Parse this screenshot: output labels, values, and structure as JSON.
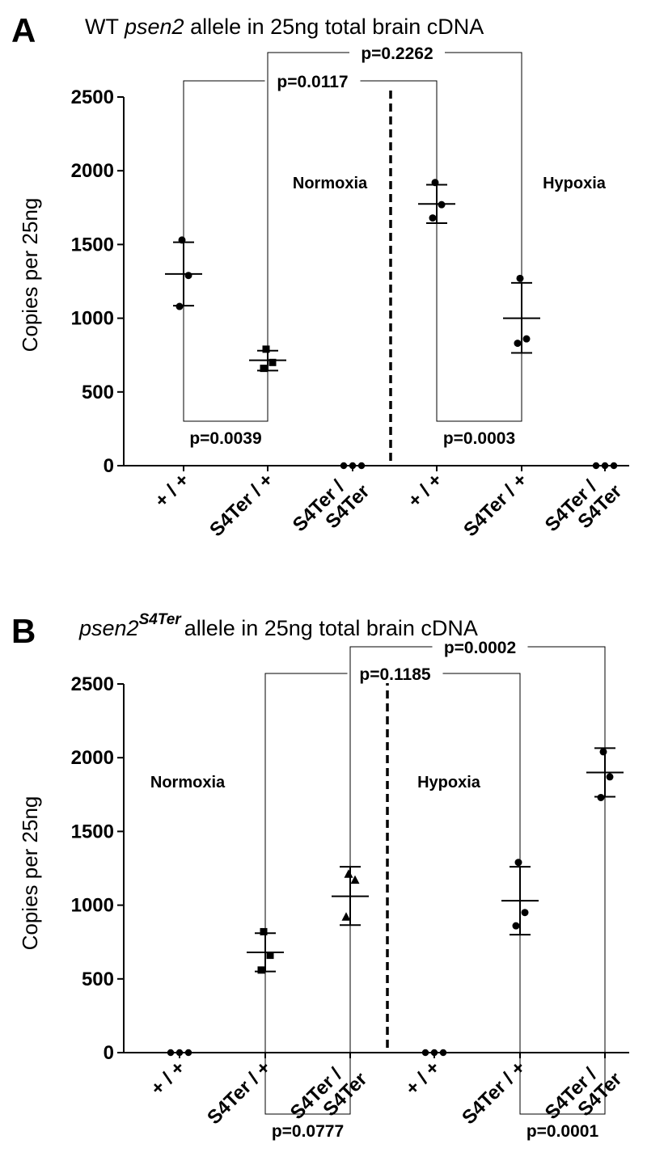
{
  "chart_data": [
    {
      "panel": "A",
      "type": "scatter",
      "title_parts": [
        "WT ",
        "psen2",
        " allele in 25ng total brain cDNA"
      ],
      "ylabel": "Copies per 25ng",
      "ylim": [
        0,
        2500
      ],
      "yticks": [
        0,
        500,
        1000,
        1500,
        2000,
        2500
      ],
      "categories": [
        [
          "+ / +"
        ],
        [
          "S4Ter / +"
        ],
        [
          "S4Ter /",
          "S4Ter"
        ],
        [
          "+ / +"
        ],
        [
          "S4Ter / +"
        ],
        [
          "S4Ter /",
          "S4Ter"
        ]
      ],
      "conditions": [
        "Normoxia",
        "Hypoxia"
      ],
      "groups": [
        {
          "marker": "circle",
          "values": [
            1080,
            1290,
            1530
          ],
          "mean": 1300,
          "err_low": 1085,
          "err_high": 1515
        },
        {
          "marker": "square",
          "values": [
            660,
            700,
            790
          ],
          "mean": 715,
          "err_low": 645,
          "err_high": 780
        },
        {
          "marker": "circle",
          "values": [
            0,
            0,
            0
          ],
          "mean": 0,
          "err_low": 0,
          "err_high": 0
        },
        {
          "marker": "circle",
          "values": [
            1680,
            1770,
            1920
          ],
          "mean": 1775,
          "err_low": 1645,
          "err_high": 1905
        },
        {
          "marker": "circle",
          "values": [
            830,
            860,
            1270
          ],
          "mean": 1000,
          "err_low": 765,
          "err_high": 1240
        },
        {
          "marker": "circle",
          "values": [
            0,
            0,
            0
          ],
          "mean": 0,
          "err_low": 0,
          "err_high": 0
        }
      ],
      "comparisons": [
        {
          "a": 0,
          "b": 1,
          "side": "bottom",
          "label": "p=0.0039"
        },
        {
          "a": 3,
          "b": 4,
          "side": "bottom",
          "label": "p=0.0003"
        },
        {
          "a": 0,
          "b": 3,
          "side": "top",
          "label": "p=0.0117"
        },
        {
          "a": 1,
          "b": 4,
          "side": "top",
          "label": "p=0.2262"
        }
      ]
    },
    {
      "panel": "B",
      "type": "scatter",
      "title_parts": [
        "psen2",
        "S4Ter",
        "allele in 25ng total brain cDNA"
      ],
      "ylabel": "Copies per 25ng",
      "ylim": [
        0,
        2500
      ],
      "yticks": [
        0,
        500,
        1000,
        1500,
        2000,
        2500
      ],
      "categories": [
        [
          "+ / +"
        ],
        [
          "S4Ter / +"
        ],
        [
          "S4Ter /",
          "S4Ter"
        ],
        [
          "+ / +"
        ],
        [
          "S4Ter / +"
        ],
        [
          "S4Ter /",
          "S4Ter"
        ]
      ],
      "conditions": [
        "Normoxia",
        "Hypoxia"
      ],
      "groups": [
        {
          "marker": "circle",
          "values": [
            0,
            0,
            0
          ],
          "mean": 0,
          "err_low": 0,
          "err_high": 0
        },
        {
          "marker": "square",
          "values": [
            560,
            660,
            820
          ],
          "mean": 680,
          "err_low": 550,
          "err_high": 810
        },
        {
          "marker": "triangle",
          "values": [
            920,
            1170,
            1210
          ],
          "mean": 1060,
          "err_low": 865,
          "err_high": 1260
        },
        {
          "marker": "circle",
          "values": [
            0,
            0,
            0
          ],
          "mean": 0,
          "err_low": 0,
          "err_high": 0
        },
        {
          "marker": "circle",
          "values": [
            860,
            950,
            1290
          ],
          "mean": 1030,
          "err_low": 800,
          "err_high": 1260
        },
        {
          "marker": "circle",
          "values": [
            1730,
            1870,
            2040
          ],
          "mean": 1900,
          "err_low": 1735,
          "err_high": 2065
        }
      ],
      "comparisons": [
        {
          "a": 1,
          "b": 2,
          "side": "bottom",
          "label": "p=0.0777"
        },
        {
          "a": 4,
          "b": 5,
          "side": "bottom",
          "label": "p=0.0001"
        },
        {
          "a": 1,
          "b": 4,
          "side": "top",
          "label": "p=0.1185"
        },
        {
          "a": 2,
          "b": 5,
          "side": "top",
          "label": "p=0.0002"
        }
      ]
    }
  ]
}
